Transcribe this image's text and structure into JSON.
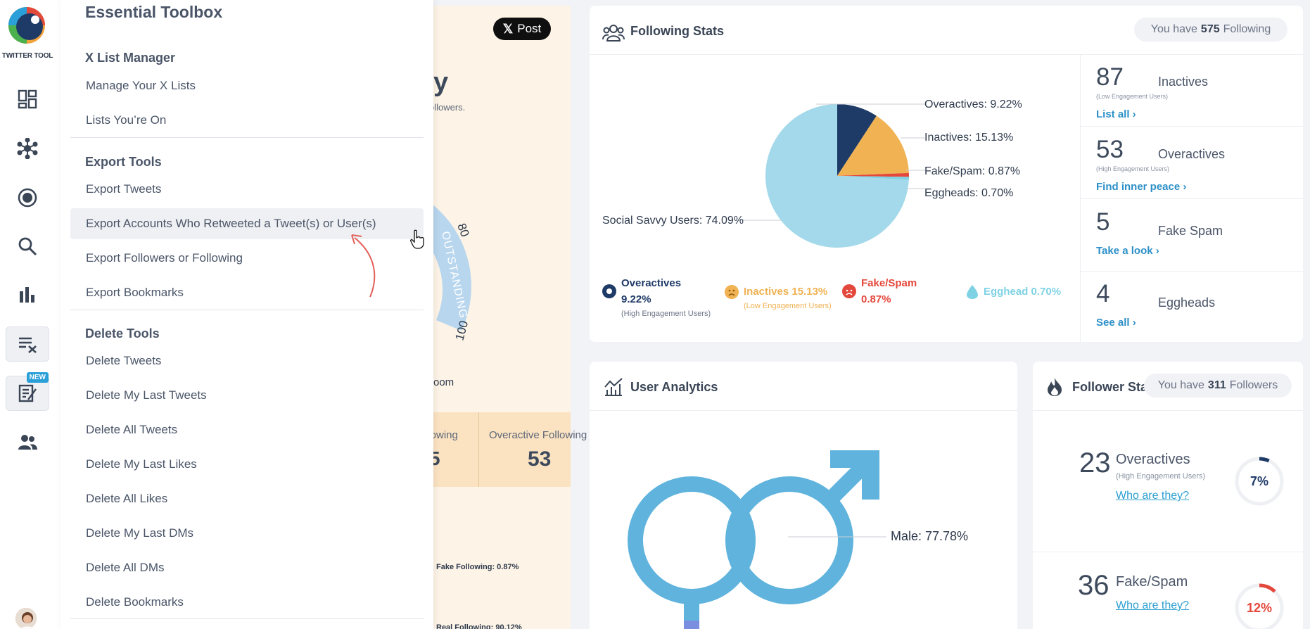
{
  "app": {
    "name": "TWITTER TOOL"
  },
  "menu": {
    "title": "Essential Toolbox",
    "sections": [
      {
        "title": "X List Manager",
        "items": [
          "Manage Your X Lists",
          "Lists You’re On"
        ]
      },
      {
        "title": "Export Tools",
        "items": [
          "Export Tweets",
          "Export Accounts Who Retweeted a Tweet(s) or User(s)",
          "Export Followers or Following",
          "Export Bookmarks"
        ]
      },
      {
        "title": "Delete Tools",
        "items": [
          "Delete Tweets",
          "Delete My Last Tweets",
          "Delete All Tweets",
          "Delete My Last Likes",
          "Delete All Likes",
          "Delete My Last DMs",
          "Delete All DMs",
          "Delete Bookmarks"
        ]
      }
    ]
  },
  "rail": {
    "new_badge": "NEW"
  },
  "background_widget": {
    "post_button": "Post",
    "heading_fragment": "y",
    "sub_fragment": "ollowers.",
    "gauge_word": "OUTSTANDING",
    "gauge_tick_80": "80",
    "gauge_tick_100": "100",
    "zoom_fragment": "oom",
    "stat1_label": "llowing",
    "stat1_value": "5",
    "stat2_label": "Overactive Following",
    "stat2_value": "53",
    "fake_following": "Fake Following: 0.87%",
    "real_following": "Real Following: 90.12%"
  },
  "following_stats": {
    "title": "Following Stats",
    "pill_prefix": "You have",
    "pill_count": "575",
    "pill_suffix": "Following",
    "pie_labels": {
      "overactives": "Overactives: 9.22%",
      "inactives": "Inactives: 15.13%",
      "fake": "Fake/Spam: 0.87%",
      "eggheads": "Eggheads: 0.70%",
      "savvy": "Social Savvy Users: 74.09%"
    },
    "legend": {
      "overactives_name": "Overactives",
      "overactives_pct": "9.22%",
      "overactives_sub": "(High Engagement Users)",
      "inactives": "Inactives 15.13%",
      "inactives_sub": "(Low Engagement Users)",
      "fake_name": "Fake/Spam",
      "fake_pct": "0.87%",
      "egghead": "Egghead 0.70%"
    },
    "side": [
      {
        "num": "87",
        "label": "Inactives",
        "sub": "(Low Engagement Users)",
        "link": "List all ›"
      },
      {
        "num": "53",
        "label": "Overactives",
        "sub": "(High Engagement Users)",
        "link": "Find inner peace ›"
      },
      {
        "num": "5",
        "label": "Fake Spam",
        "sub": "",
        "link": "Take a look ›"
      },
      {
        "num": "4",
        "label": "Eggheads",
        "sub": "",
        "link": "See all ›"
      }
    ]
  },
  "chart_data": {
    "type": "pie",
    "title": "",
    "categories": [
      "Overactives",
      "Inactives",
      "Fake/Spam",
      "Eggheads",
      "Social Savvy Users"
    ],
    "values": [
      9.22,
      15.13,
      0.87,
      0.7,
      74.09
    ],
    "colors": [
      "#1e3a66",
      "#f0b253",
      "#e4473b",
      "#7fd2e4",
      "#a3d9ea"
    ]
  },
  "user_analytics": {
    "title": "User Analytics",
    "male_label": "Male: 77.78%"
  },
  "follower_stats": {
    "title": "Follower Sta",
    "pill_prefix": "You have",
    "pill_count": "311",
    "pill_suffix": "Followers",
    "items": [
      {
        "num": "23",
        "label": "Overactives",
        "sub": "(High Engagement Users)",
        "link": "Who are they?",
        "pct": "7%",
        "fraction": 0.07,
        "color": "#1e3a66"
      },
      {
        "num": "36",
        "label": "Fake/Spam",
        "sub": "",
        "link": "Who are they?",
        "pct": "12%",
        "fraction": 0.12,
        "color": "#e4473b"
      }
    ]
  }
}
